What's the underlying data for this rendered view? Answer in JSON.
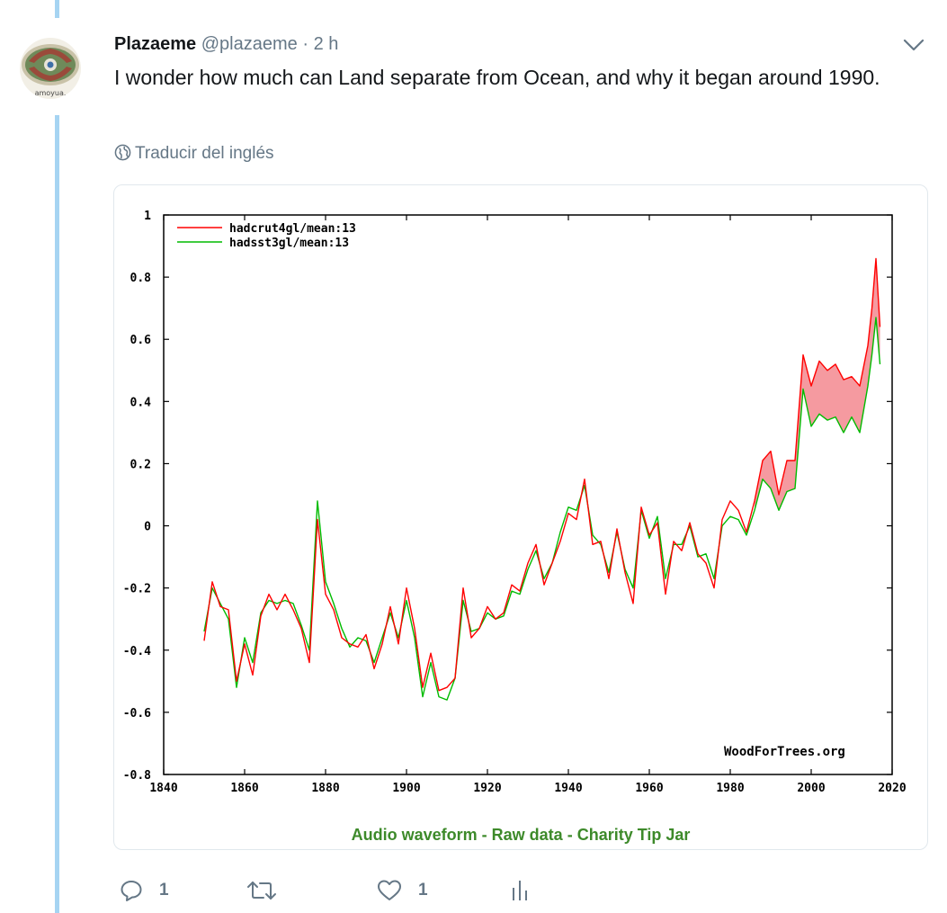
{
  "tweet": {
    "author_name": "Plazaeme",
    "handle": "@plazaeme",
    "separator": "·",
    "time": "2 h",
    "avatar_caption": "amoyua.",
    "text": "I wonder how much can Land separate from Ocean, and why it began around 1990.",
    "translate_label": "Traducir del inglés"
  },
  "card_links": {
    "audio": "Audio waveform",
    "raw": "Raw data",
    "tip": "Charity Tip Jar",
    "sep": "-"
  },
  "actions": {
    "reply_count": "1",
    "retweet_count": "",
    "like_count": "1"
  },
  "chart_data": {
    "type": "line",
    "title": "",
    "xlabel": "",
    "ylabel": "",
    "xlim": [
      1840,
      2020
    ],
    "ylim": [
      -0.8,
      1
    ],
    "x_ticks": [
      "1840",
      "1860",
      "1880",
      "1900",
      "1920",
      "1940",
      "1960",
      "1980",
      "2000",
      "2020"
    ],
    "y_ticks": [
      "1",
      "0.8",
      "0.6",
      "0.4",
      "0.2",
      "0",
      "-0.2",
      "-0.4",
      "-0.6",
      "-0.8"
    ],
    "credit": "WoodForTrees.org",
    "fill_between": "red where hadcrut4gl above hadsst3gl",
    "series": [
      {
        "name": "hadcrut4gl/mean:13",
        "color": "#ff0000",
        "x": [
          1850,
          1852,
          1854,
          1856,
          1858,
          1860,
          1862,
          1864,
          1866,
          1868,
          1870,
          1872,
          1874,
          1876,
          1878,
          1880,
          1882,
          1884,
          1886,
          1888,
          1890,
          1892,
          1894,
          1896,
          1898,
          1900,
          1902,
          1904,
          1906,
          1908,
          1910,
          1912,
          1914,
          1916,
          1918,
          1920,
          1922,
          1924,
          1926,
          1928,
          1930,
          1932,
          1934,
          1936,
          1938,
          1940,
          1942,
          1944,
          1946,
          1948,
          1950,
          1952,
          1954,
          1956,
          1958,
          1960,
          1962,
          1964,
          1966,
          1968,
          1970,
          1972,
          1974,
          1976,
          1978,
          1980,
          1982,
          1984,
          1986,
          1988,
          1990,
          1992,
          1994,
          1996,
          1998,
          2000,
          2002,
          2004,
          2006,
          2008,
          2010,
          2012,
          2014,
          2015,
          2016,
          2017
        ],
        "values": [
          -0.37,
          -0.18,
          -0.26,
          -0.27,
          -0.5,
          -0.38,
          -0.48,
          -0.29,
          -0.22,
          -0.27,
          -0.22,
          -0.27,
          -0.33,
          -0.44,
          0.02,
          -0.22,
          -0.27,
          -0.36,
          -0.38,
          -0.39,
          -0.35,
          -0.46,
          -0.38,
          -0.26,
          -0.38,
          -0.2,
          -0.33,
          -0.52,
          -0.41,
          -0.53,
          -0.52,
          -0.49,
          -0.2,
          -0.36,
          -0.33,
          -0.26,
          -0.3,
          -0.28,
          -0.19,
          -0.21,
          -0.12,
          -0.06,
          -0.19,
          -0.12,
          -0.05,
          0.04,
          0.02,
          0.15,
          -0.06,
          -0.05,
          -0.17,
          -0.01,
          -0.15,
          -0.25,
          0.06,
          -0.03,
          0.01,
          -0.22,
          -0.05,
          -0.08,
          0.01,
          -0.09,
          -0.12,
          -0.2,
          0.02,
          0.08,
          0.05,
          -0.02,
          0.08,
          0.21,
          0.24,
          0.1,
          0.21,
          0.21,
          0.55,
          0.45,
          0.53,
          0.5,
          0.52,
          0.47,
          0.48,
          0.45,
          0.58,
          0.7,
          0.86,
          0.64
        ]
      },
      {
        "name": "hadsst3gl/mean:13",
        "color": "#00bb00",
        "x": [
          1850,
          1852,
          1854,
          1856,
          1858,
          1860,
          1862,
          1864,
          1866,
          1868,
          1870,
          1872,
          1874,
          1876,
          1878,
          1880,
          1882,
          1884,
          1886,
          1888,
          1890,
          1892,
          1894,
          1896,
          1898,
          1900,
          1902,
          1904,
          1906,
          1908,
          1910,
          1912,
          1914,
          1916,
          1918,
          1920,
          1922,
          1924,
          1926,
          1928,
          1930,
          1932,
          1934,
          1936,
          1938,
          1940,
          1942,
          1944,
          1946,
          1948,
          1950,
          1952,
          1954,
          1956,
          1958,
          1960,
          1962,
          1964,
          1966,
          1968,
          1970,
          1972,
          1974,
          1976,
          1978,
          1980,
          1982,
          1984,
          1986,
          1988,
          1990,
          1992,
          1994,
          1996,
          1998,
          2000,
          2002,
          2004,
          2006,
          2008,
          2010,
          2012,
          2014,
          2015,
          2016,
          2017
        ],
        "values": [
          -0.34,
          -0.2,
          -0.25,
          -0.3,
          -0.52,
          -0.36,
          -0.44,
          -0.28,
          -0.24,
          -0.25,
          -0.24,
          -0.25,
          -0.32,
          -0.4,
          0.08,
          -0.18,
          -0.25,
          -0.33,
          -0.39,
          -0.36,
          -0.37,
          -0.44,
          -0.36,
          -0.28,
          -0.36,
          -0.24,
          -0.36,
          -0.55,
          -0.44,
          -0.55,
          -0.56,
          -0.49,
          -0.24,
          -0.34,
          -0.33,
          -0.28,
          -0.3,
          -0.29,
          -0.21,
          -0.22,
          -0.14,
          -0.08,
          -0.17,
          -0.12,
          -0.02,
          0.06,
          0.05,
          0.13,
          -0.03,
          -0.06,
          -0.15,
          -0.02,
          -0.14,
          -0.2,
          0.05,
          -0.04,
          0.03,
          -0.17,
          -0.06,
          -0.06,
          0.0,
          -0.1,
          -0.09,
          -0.17,
          0.0,
          0.03,
          0.02,
          -0.03,
          0.05,
          0.15,
          0.12,
          0.05,
          0.11,
          0.12,
          0.44,
          0.32,
          0.36,
          0.34,
          0.35,
          0.3,
          0.35,
          0.3,
          0.45,
          0.55,
          0.67,
          0.52
        ]
      }
    ]
  }
}
